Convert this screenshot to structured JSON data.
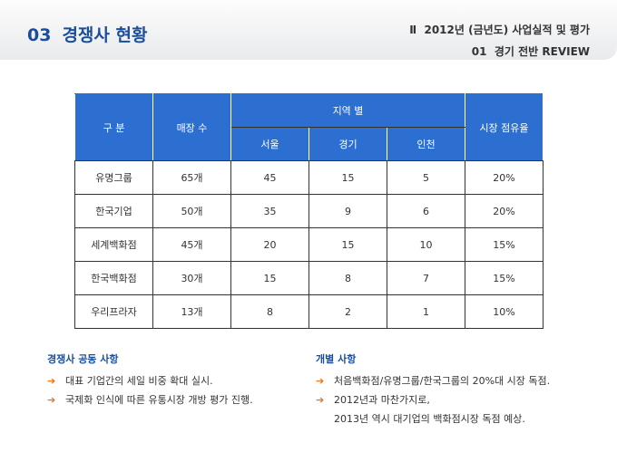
{
  "header": {
    "section_number": "03",
    "title": "경쟁사 현황",
    "chapter": "Ⅱ",
    "chapter_title": "2012년 (금년도) 사업실적 및 평가",
    "subsection_number": "01",
    "subsection_title": "경기 전반 REVIEW"
  },
  "table": {
    "header": {
      "category": "구 분",
      "stores": "매장 수",
      "region": "지역 별",
      "regions": [
        "서울",
        "경기",
        "인천"
      ],
      "share": "시장 점유율"
    },
    "rows": [
      [
        "유명그룹",
        "65개",
        "45",
        "15",
        "5",
        "20%"
      ],
      [
        "한국기업",
        "50개",
        "35",
        "9",
        "6",
        "20%"
      ],
      [
        "세계백화점",
        "45개",
        "20",
        "15",
        "10",
        "15%"
      ],
      [
        "한국백화점",
        "30개",
        "15",
        "8",
        "7",
        "15%"
      ],
      [
        "우리프라자",
        "13개",
        "8",
        "2",
        "1",
        "10%"
      ]
    ]
  },
  "notes": [
    {
      "heading": "경쟁사 공동 사항",
      "items": [
        [
          "대표 기업간의 세일 비중 확대 실시."
        ],
        [
          "국제화 인식에 따른 유통시장 개방 평가 진행."
        ]
      ]
    },
    {
      "heading": "개별 사항",
      "items": [
        [
          "처음백화점/유명그룹/한국그룹의 20%대 시장 독점."
        ],
        [
          "2012년과 마찬가지로,",
          "2013년 역시 대기업의 백화점시장 독점 예상."
        ]
      ]
    }
  ]
}
